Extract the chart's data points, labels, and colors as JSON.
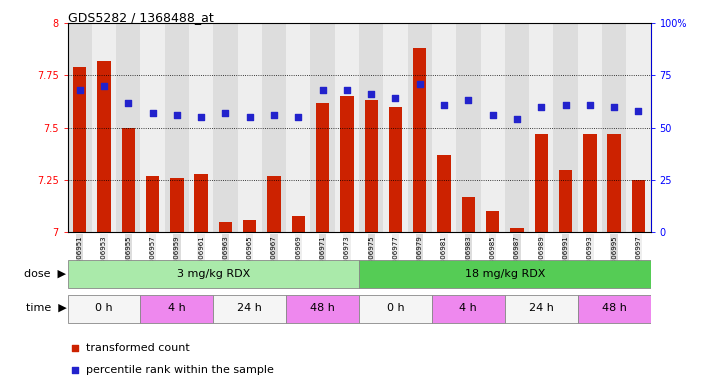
{
  "title": "GDS5282 / 1368488_at",
  "samples": [
    "GSM306951",
    "GSM306953",
    "GSM306955",
    "GSM306957",
    "GSM306959",
    "GSM306961",
    "GSM306963",
    "GSM306965",
    "GSM306967",
    "GSM306969",
    "GSM306971",
    "GSM306973",
    "GSM306975",
    "GSM306977",
    "GSM306979",
    "GSM306981",
    "GSM306983",
    "GSM306985",
    "GSM306987",
    "GSM306989",
    "GSM306991",
    "GSM306993",
    "GSM306995",
    "GSM306997"
  ],
  "bar_values": [
    7.79,
    7.82,
    7.5,
    7.27,
    7.26,
    7.28,
    7.05,
    7.06,
    7.27,
    7.08,
    7.62,
    7.65,
    7.63,
    7.6,
    7.88,
    7.37,
    7.17,
    7.1,
    7.02,
    7.47,
    7.3,
    7.47,
    7.47,
    7.25
  ],
  "percentile_values": [
    68,
    70,
    62,
    57,
    56,
    55,
    57,
    55,
    56,
    55,
    68,
    68,
    66,
    64,
    71,
    61,
    63,
    56,
    54,
    60,
    61,
    61,
    60,
    58
  ],
  "ylim_left": [
    7,
    8
  ],
  "ylim_right": [
    0,
    100
  ],
  "yticks_left": [
    7,
    7.25,
    7.5,
    7.75,
    8
  ],
  "yticks_right": [
    0,
    25,
    50,
    75,
    100
  ],
  "bar_color": "#CC2200",
  "percentile_color": "#2222CC",
  "col_colors": [
    "#DDDDDD",
    "#EEEEEE"
  ],
  "dose_groups": [
    {
      "label": "3 mg/kg RDX",
      "start": 0,
      "end": 12,
      "color": "#AAEAAA"
    },
    {
      "label": "18 mg/kg RDX",
      "start": 12,
      "end": 24,
      "color": "#55CC55"
    }
  ],
  "time_groups": [
    {
      "label": "0 h",
      "start": 0,
      "end": 3,
      "color": "#F5F5F5"
    },
    {
      "label": "4 h",
      "start": 3,
      "end": 6,
      "color": "#EE88EE"
    },
    {
      "label": "24 h",
      "start": 6,
      "end": 9,
      "color": "#F5F5F5"
    },
    {
      "label": "48 h",
      "start": 9,
      "end": 12,
      "color": "#EE88EE"
    },
    {
      "label": "0 h",
      "start": 12,
      "end": 15,
      "color": "#F5F5F5"
    },
    {
      "label": "4 h",
      "start": 15,
      "end": 18,
      "color": "#EE88EE"
    },
    {
      "label": "24 h",
      "start": 18,
      "end": 21,
      "color": "#F5F5F5"
    },
    {
      "label": "48 h",
      "start": 21,
      "end": 24,
      "color": "#EE88EE"
    }
  ],
  "dose_label": "dose",
  "time_label": "time",
  "legend_items": [
    {
      "label": "transformed count",
      "color": "#CC2200"
    },
    {
      "label": "percentile rank within the sample",
      "color": "#2222CC"
    }
  ]
}
